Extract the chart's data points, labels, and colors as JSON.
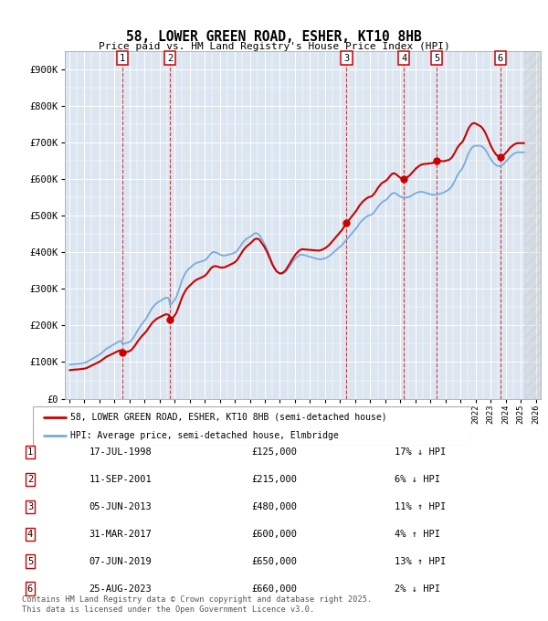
{
  "title": "58, LOWER GREEN ROAD, ESHER, KT10 8HB",
  "subtitle": "Price paid vs. HM Land Registry's House Price Index (HPI)",
  "ylabel_ticks": [
    "£0",
    "£100K",
    "£200K",
    "£300K",
    "£400K",
    "£500K",
    "£600K",
    "£700K",
    "£800K",
    "£900K"
  ],
  "ytick_values": [
    0,
    100000,
    200000,
    300000,
    400000,
    500000,
    600000,
    700000,
    800000,
    900000
  ],
  "ylim": [
    0,
    950000
  ],
  "xlim_start": 1994.7,
  "xlim_end": 2026.3,
  "sale_color": "#cc0000",
  "hpi_color": "#7aabdb",
  "background_color": "#dce6f1",
  "grid_color": "#ffffff",
  "legend_label_sale": "58, LOWER GREEN ROAD, ESHER, KT10 8HB (semi-detached house)",
  "legend_label_hpi": "HPI: Average price, semi-detached house, Elmbridge",
  "sales": [
    {
      "num": 1,
      "date": "17-JUL-1998",
      "year": 1998.54,
      "price": 125000,
      "pct": "17%",
      "dir": "↓"
    },
    {
      "num": 2,
      "date": "11-SEP-2001",
      "year": 2001.7,
      "price": 215000,
      "pct": "6%",
      "dir": "↓"
    },
    {
      "num": 3,
      "date": "05-JUN-2013",
      "year": 2013.43,
      "price": 480000,
      "pct": "11%",
      "dir": "↑"
    },
    {
      "num": 4,
      "date": "31-MAR-2017",
      "year": 2017.25,
      "price": 600000,
      "pct": "4%",
      "dir": "↑"
    },
    {
      "num": 5,
      "date": "07-JUN-2019",
      "year": 2019.43,
      "price": 650000,
      "pct": "13%",
      "dir": "↑"
    },
    {
      "num": 6,
      "date": "25-AUG-2023",
      "year": 2023.65,
      "price": 660000,
      "pct": "2%",
      "dir": "↓"
    }
  ],
  "footer": "Contains HM Land Registry data © Crown copyright and database right 2025.\nThis data is licensed under the Open Government Licence v3.0.",
  "hpi_data": [
    [
      1995.04,
      93000
    ],
    [
      1995.13,
      93500
    ],
    [
      1995.21,
      94000
    ],
    [
      1995.29,
      94500
    ],
    [
      1995.38,
      94800
    ],
    [
      1995.46,
      95000
    ],
    [
      1995.54,
      95200
    ],
    [
      1995.63,
      95500
    ],
    [
      1995.71,
      96000
    ],
    [
      1995.79,
      96500
    ],
    [
      1995.88,
      97000
    ],
    [
      1995.96,
      97500
    ],
    [
      1996.04,
      98500
    ],
    [
      1996.13,
      99500
    ],
    [
      1996.21,
      101000
    ],
    [
      1996.29,
      103000
    ],
    [
      1996.38,
      105000
    ],
    [
      1996.46,
      107000
    ],
    [
      1996.54,
      109000
    ],
    [
      1996.63,
      111000
    ],
    [
      1996.71,
      113000
    ],
    [
      1996.79,
      115000
    ],
    [
      1996.88,
      117000
    ],
    [
      1996.96,
      119000
    ],
    [
      1997.04,
      121000
    ],
    [
      1997.13,
      124000
    ],
    [
      1997.21,
      127000
    ],
    [
      1997.29,
      130000
    ],
    [
      1997.38,
      133000
    ],
    [
      1997.46,
      136000
    ],
    [
      1997.54,
      138000
    ],
    [
      1997.63,
      140000
    ],
    [
      1997.71,
      142000
    ],
    [
      1997.79,
      144000
    ],
    [
      1997.88,
      146000
    ],
    [
      1997.96,
      148000
    ],
    [
      1998.04,
      150000
    ],
    [
      1998.13,
      152000
    ],
    [
      1998.21,
      154000
    ],
    [
      1998.29,
      156000
    ],
    [
      1998.38,
      157000
    ],
    [
      1998.46,
      158000
    ],
    [
      1998.54,
      149000
    ],
    [
      1998.63,
      150000
    ],
    [
      1998.71,
      151000
    ],
    [
      1998.79,
      152000
    ],
    [
      1998.88,
      153000
    ],
    [
      1998.96,
      154000
    ],
    [
      1999.04,
      156000
    ],
    [
      1999.13,
      159000
    ],
    [
      1999.21,
      163000
    ],
    [
      1999.29,
      168000
    ],
    [
      1999.38,
      174000
    ],
    [
      1999.46,
      180000
    ],
    [
      1999.54,
      186000
    ],
    [
      1999.63,
      192000
    ],
    [
      1999.71,
      197000
    ],
    [
      1999.79,
      202000
    ],
    [
      1999.88,
      207000
    ],
    [
      1999.96,
      211000
    ],
    [
      2000.04,
      215000
    ],
    [
      2000.13,
      220000
    ],
    [
      2000.21,
      226000
    ],
    [
      2000.29,
      232000
    ],
    [
      2000.38,
      238000
    ],
    [
      2000.46,
      244000
    ],
    [
      2000.54,
      249000
    ],
    [
      2000.63,
      253000
    ],
    [
      2000.71,
      257000
    ],
    [
      2000.79,
      260000
    ],
    [
      2000.88,
      263000
    ],
    [
      2000.96,
      265000
    ],
    [
      2001.04,
      267000
    ],
    [
      2001.13,
      269000
    ],
    [
      2001.21,
      271000
    ],
    [
      2001.29,
      273000
    ],
    [
      2001.38,
      275000
    ],
    [
      2001.46,
      276000
    ],
    [
      2001.54,
      275000
    ],
    [
      2001.63,
      274000
    ],
    [
      2001.71,
      255000
    ],
    [
      2001.79,
      259000
    ],
    [
      2001.88,
      263000
    ],
    [
      2001.96,
      267000
    ],
    [
      2002.04,
      272000
    ],
    [
      2002.13,
      279000
    ],
    [
      2002.21,
      288000
    ],
    [
      2002.29,
      298000
    ],
    [
      2002.38,
      309000
    ],
    [
      2002.46,
      319000
    ],
    [
      2002.54,
      328000
    ],
    [
      2002.63,
      336000
    ],
    [
      2002.71,
      342000
    ],
    [
      2002.79,
      348000
    ],
    [
      2002.88,
      352000
    ],
    [
      2002.96,
      355000
    ],
    [
      2003.04,
      358000
    ],
    [
      2003.13,
      361000
    ],
    [
      2003.21,
      364000
    ],
    [
      2003.29,
      367000
    ],
    [
      2003.38,
      369000
    ],
    [
      2003.46,
      371000
    ],
    [
      2003.54,
      372000
    ],
    [
      2003.63,
      373000
    ],
    [
      2003.71,
      374000
    ],
    [
      2003.79,
      375000
    ],
    [
      2003.88,
      376000
    ],
    [
      2003.96,
      377000
    ],
    [
      2004.04,
      379000
    ],
    [
      2004.13,
      382000
    ],
    [
      2004.21,
      386000
    ],
    [
      2004.29,
      390000
    ],
    [
      2004.38,
      395000
    ],
    [
      2004.46,
      398000
    ],
    [
      2004.54,
      400000
    ],
    [
      2004.63,
      401000
    ],
    [
      2004.71,
      400000
    ],
    [
      2004.79,
      399000
    ],
    [
      2004.88,
      397000
    ],
    [
      2004.96,
      395000
    ],
    [
      2005.04,
      393000
    ],
    [
      2005.13,
      392000
    ],
    [
      2005.21,
      391000
    ],
    [
      2005.29,
      391000
    ],
    [
      2005.38,
      391000
    ],
    [
      2005.46,
      392000
    ],
    [
      2005.54,
      393000
    ],
    [
      2005.63,
      394000
    ],
    [
      2005.71,
      395000
    ],
    [
      2005.79,
      396000
    ],
    [
      2005.88,
      397000
    ],
    [
      2005.96,
      398000
    ],
    [
      2006.04,
      400000
    ],
    [
      2006.13,
      403000
    ],
    [
      2006.21,
      407000
    ],
    [
      2006.29,
      412000
    ],
    [
      2006.38,
      417000
    ],
    [
      2006.46,
      422000
    ],
    [
      2006.54,
      427000
    ],
    [
      2006.63,
      431000
    ],
    [
      2006.71,
      434000
    ],
    [
      2006.79,
      437000
    ],
    [
      2006.88,
      439000
    ],
    [
      2006.96,
      441000
    ],
    [
      2007.04,
      443000
    ],
    [
      2007.13,
      446000
    ],
    [
      2007.21,
      449000
    ],
    [
      2007.29,
      451000
    ],
    [
      2007.38,
      452000
    ],
    [
      2007.46,
      452000
    ],
    [
      2007.54,
      450000
    ],
    [
      2007.63,
      447000
    ],
    [
      2007.71,
      442000
    ],
    [
      2007.79,
      436000
    ],
    [
      2007.88,
      430000
    ],
    [
      2007.96,
      424000
    ],
    [
      2008.04,
      417000
    ],
    [
      2008.13,
      409000
    ],
    [
      2008.21,
      401000
    ],
    [
      2008.29,
      392000
    ],
    [
      2008.38,
      383000
    ],
    [
      2008.46,
      374000
    ],
    [
      2008.54,
      366000
    ],
    [
      2008.63,
      359000
    ],
    [
      2008.71,
      353000
    ],
    [
      2008.79,
      348000
    ],
    [
      2008.88,
      345000
    ],
    [
      2008.96,
      342000
    ],
    [
      2009.04,
      341000
    ],
    [
      2009.13,
      341000
    ],
    [
      2009.21,
      342000
    ],
    [
      2009.29,
      344000
    ],
    [
      2009.38,
      347000
    ],
    [
      2009.46,
      351000
    ],
    [
      2009.54,
      356000
    ],
    [
      2009.63,
      361000
    ],
    [
      2009.71,
      366000
    ],
    [
      2009.79,
      371000
    ],
    [
      2009.88,
      376000
    ],
    [
      2009.96,
      380000
    ],
    [
      2010.04,
      384000
    ],
    [
      2010.13,
      387000
    ],
    [
      2010.21,
      390000
    ],
    [
      2010.29,
      392000
    ],
    [
      2010.38,
      393000
    ],
    [
      2010.46,
      394000
    ],
    [
      2010.54,
      393000
    ],
    [
      2010.63,
      392000
    ],
    [
      2010.71,
      391000
    ],
    [
      2010.79,
      390000
    ],
    [
      2010.88,
      389000
    ],
    [
      2010.96,
      388000
    ],
    [
      2011.04,
      387000
    ],
    [
      2011.13,
      386000
    ],
    [
      2011.21,
      385000
    ],
    [
      2011.29,
      384000
    ],
    [
      2011.38,
      383000
    ],
    [
      2011.46,
      382000
    ],
    [
      2011.54,
      381000
    ],
    [
      2011.63,
      381000
    ],
    [
      2011.71,
      381000
    ],
    [
      2011.79,
      381000
    ],
    [
      2011.88,
      382000
    ],
    [
      2011.96,
      383000
    ],
    [
      2012.04,
      384000
    ],
    [
      2012.13,
      386000
    ],
    [
      2012.21,
      388000
    ],
    [
      2012.29,
      390000
    ],
    [
      2012.38,
      393000
    ],
    [
      2012.46,
      396000
    ],
    [
      2012.54,
      399000
    ],
    [
      2012.63,
      402000
    ],
    [
      2012.71,
      405000
    ],
    [
      2012.79,
      408000
    ],
    [
      2012.88,
      411000
    ],
    [
      2012.96,
      414000
    ],
    [
      2013.04,
      417000
    ],
    [
      2013.13,
      420000
    ],
    [
      2013.21,
      424000
    ],
    [
      2013.29,
      428000
    ],
    [
      2013.38,
      432000
    ],
    [
      2013.46,
      436000
    ],
    [
      2013.54,
      440000
    ],
    [
      2013.63,
      444000
    ],
    [
      2013.71,
      448000
    ],
    [
      2013.79,
      452000
    ],
    [
      2013.88,
      456000
    ],
    [
      2013.96,
      460000
    ],
    [
      2014.04,
      464000
    ],
    [
      2014.13,
      469000
    ],
    [
      2014.21,
      474000
    ],
    [
      2014.29,
      479000
    ],
    [
      2014.38,
      483000
    ],
    [
      2014.46,
      487000
    ],
    [
      2014.54,
      490000
    ],
    [
      2014.63,
      493000
    ],
    [
      2014.71,
      496000
    ],
    [
      2014.79,
      498000
    ],
    [
      2014.88,
      500000
    ],
    [
      2014.96,
      501000
    ],
    [
      2015.04,
      502000
    ],
    [
      2015.13,
      504000
    ],
    [
      2015.21,
      507000
    ],
    [
      2015.29,
      511000
    ],
    [
      2015.38,
      516000
    ],
    [
      2015.46,
      521000
    ],
    [
      2015.54,
      526000
    ],
    [
      2015.63,
      530000
    ],
    [
      2015.71,
      534000
    ],
    [
      2015.79,
      537000
    ],
    [
      2015.88,
      539000
    ],
    [
      2015.96,
      541000
    ],
    [
      2016.04,
      543000
    ],
    [
      2016.13,
      546000
    ],
    [
      2016.21,
      550000
    ],
    [
      2016.29,
      554000
    ],
    [
      2016.38,
      558000
    ],
    [
      2016.46,
      561000
    ],
    [
      2016.54,
      562000
    ],
    [
      2016.63,
      562000
    ],
    [
      2016.71,
      560000
    ],
    [
      2016.79,
      558000
    ],
    [
      2016.88,
      555000
    ],
    [
      2016.96,
      553000
    ],
    [
      2017.04,
      551000
    ],
    [
      2017.13,
      550000
    ],
    [
      2017.21,
      549000
    ],
    [
      2017.29,
      549000
    ],
    [
      2017.38,
      549000
    ],
    [
      2017.46,
      550000
    ],
    [
      2017.54,
      551000
    ],
    [
      2017.63,
      552000
    ],
    [
      2017.71,
      554000
    ],
    [
      2017.79,
      556000
    ],
    [
      2017.88,
      558000
    ],
    [
      2017.96,
      560000
    ],
    [
      2018.04,
      562000
    ],
    [
      2018.13,
      563000
    ],
    [
      2018.21,
      564000
    ],
    [
      2018.29,
      565000
    ],
    [
      2018.38,
      565000
    ],
    [
      2018.46,
      565000
    ],
    [
      2018.54,
      564000
    ],
    [
      2018.63,
      563000
    ],
    [
      2018.71,
      562000
    ],
    [
      2018.79,
      561000
    ],
    [
      2018.88,
      560000
    ],
    [
      2018.96,
      559000
    ],
    [
      2019.04,
      558000
    ],
    [
      2019.13,
      557000
    ],
    [
      2019.21,
      557000
    ],
    [
      2019.29,
      557000
    ],
    [
      2019.38,
      557000
    ],
    [
      2019.46,
      558000
    ],
    [
      2019.54,
      559000
    ],
    [
      2019.63,
      560000
    ],
    [
      2019.71,
      561000
    ],
    [
      2019.79,
      562000
    ],
    [
      2019.88,
      563000
    ],
    [
      2019.96,
      565000
    ],
    [
      2020.04,
      567000
    ],
    [
      2020.13,
      569000
    ],
    [
      2020.21,
      571000
    ],
    [
      2020.29,
      574000
    ],
    [
      2020.38,
      578000
    ],
    [
      2020.46,
      583000
    ],
    [
      2020.54,
      589000
    ],
    [
      2020.63,
      596000
    ],
    [
      2020.71,
      603000
    ],
    [
      2020.79,
      610000
    ],
    [
      2020.88,
      616000
    ],
    [
      2020.96,
      621000
    ],
    [
      2021.04,
      625000
    ],
    [
      2021.13,
      630000
    ],
    [
      2021.21,
      637000
    ],
    [
      2021.29,
      645000
    ],
    [
      2021.38,
      654000
    ],
    [
      2021.46,
      663000
    ],
    [
      2021.54,
      671000
    ],
    [
      2021.63,
      678000
    ],
    [
      2021.71,
      683000
    ],
    [
      2021.79,
      687000
    ],
    [
      2021.88,
      690000
    ],
    [
      2021.96,
      691000
    ],
    [
      2022.04,
      691000
    ],
    [
      2022.13,
      691000
    ],
    [
      2022.21,
      691000
    ],
    [
      2022.29,
      691000
    ],
    [
      2022.38,
      690000
    ],
    [
      2022.46,
      688000
    ],
    [
      2022.54,
      685000
    ],
    [
      2022.63,
      681000
    ],
    [
      2022.71,
      676000
    ],
    [
      2022.79,
      670000
    ],
    [
      2022.88,
      664000
    ],
    [
      2022.96,
      658000
    ],
    [
      2023.04,
      652000
    ],
    [
      2023.13,
      647000
    ],
    [
      2023.21,
      643000
    ],
    [
      2023.29,
      640000
    ],
    [
      2023.38,
      637000
    ],
    [
      2023.46,
      636000
    ],
    [
      2023.54,
      635000
    ],
    [
      2023.63,
      636000
    ],
    [
      2023.71,
      637000
    ],
    [
      2023.79,
      639000
    ],
    [
      2023.88,
      642000
    ],
    [
      2023.96,
      645000
    ],
    [
      2024.04,
      649000
    ],
    [
      2024.13,
      653000
    ],
    [
      2024.21,
      657000
    ],
    [
      2024.29,
      661000
    ],
    [
      2024.38,
      664000
    ],
    [
      2024.46,
      667000
    ],
    [
      2024.54,
      669000
    ],
    [
      2024.63,
      671000
    ],
    [
      2024.71,
      672000
    ],
    [
      2024.79,
      673000
    ],
    [
      2024.88,
      673000
    ],
    [
      2024.96,
      673000
    ],
    [
      2025.04,
      673000
    ],
    [
      2025.13,
      673000
    ],
    [
      2025.21,
      673000
    ]
  ]
}
